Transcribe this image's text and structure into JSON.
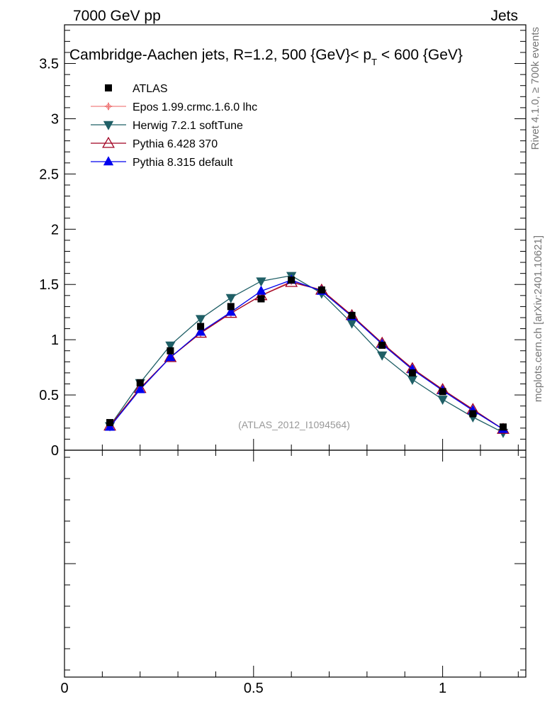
{
  "header": {
    "left": "7000 GeV pp",
    "right": "Jets"
  },
  "side_text": {
    "rivet": "Rivet 4.1.0, ≥ 700k events",
    "mcplots": "mcplots.cern.ch [arXiv:2401.10621]"
  },
  "chart_data": {
    "type": "line",
    "title_main": "Cambridge-Aachen jets, R=1.2,  500 {GeV}< p",
    "title_sub": "T",
    "title_tail": " < 600 {GeV}",
    "analysis_tag": "(ATLAS_2012_I1094564)",
    "xlabel": "",
    "ylabel": "",
    "xlim": [
      0,
      1.22
    ],
    "ylim": [
      0,
      3.85
    ],
    "y_ticks": [
      0,
      0.5,
      1,
      1.5,
      2,
      2.5,
      3,
      3.5
    ],
    "y_tick_labels": [
      "0",
      "0.5",
      "1",
      "1.5",
      "2",
      "2.5",
      "3",
      "3.5"
    ],
    "x_ticks": [
      0,
      0.5,
      1
    ],
    "x_tick_labels": [
      "0",
      "0.5",
      "1"
    ],
    "x": [
      0.12,
      0.2,
      0.28,
      0.36,
      0.44,
      0.52,
      0.6,
      0.68,
      0.76,
      0.84,
      0.92,
      1.0,
      1.08,
      1.16
    ],
    "series": [
      {
        "name": "ATLAS",
        "color": "#000000",
        "marker": "square",
        "values": [
          0.25,
          0.61,
          0.9,
          1.12,
          1.3,
          1.37,
          1.54,
          1.45,
          1.22,
          0.95,
          0.7,
          0.53,
          0.33,
          0.21
        ]
      },
      {
        "name": "Epos 1.99.crmc.1.6.0 lhc",
        "color": "#f08080",
        "marker": "cross",
        "values": [
          0.22,
          0.56,
          0.84,
          1.06,
          1.24,
          1.4,
          1.53,
          1.45,
          1.22,
          0.96,
          0.73,
          0.55,
          0.36,
          0.19
        ]
      },
      {
        "name": "Herwig 7.2.1 softTune",
        "color": "#1f5f66",
        "marker": "triangle-down",
        "values": [
          0.22,
          0.61,
          0.95,
          1.19,
          1.38,
          1.53,
          1.58,
          1.42,
          1.15,
          0.86,
          0.64,
          0.46,
          0.3,
          0.16
        ]
      },
      {
        "name": "Pythia 6.428 370",
        "color": "#a00020",
        "marker": "triangle-open",
        "values": [
          0.22,
          0.56,
          0.84,
          1.06,
          1.24,
          1.4,
          1.52,
          1.45,
          1.22,
          0.97,
          0.74,
          0.55,
          0.37,
          0.19
        ]
      },
      {
        "name": "Pythia 8.315 default",
        "color": "#0000ee",
        "marker": "triangle-up",
        "values": [
          0.21,
          0.55,
          0.84,
          1.07,
          1.25,
          1.44,
          1.54,
          1.44,
          1.21,
          0.96,
          0.73,
          0.54,
          0.36,
          0.19
        ]
      }
    ]
  }
}
